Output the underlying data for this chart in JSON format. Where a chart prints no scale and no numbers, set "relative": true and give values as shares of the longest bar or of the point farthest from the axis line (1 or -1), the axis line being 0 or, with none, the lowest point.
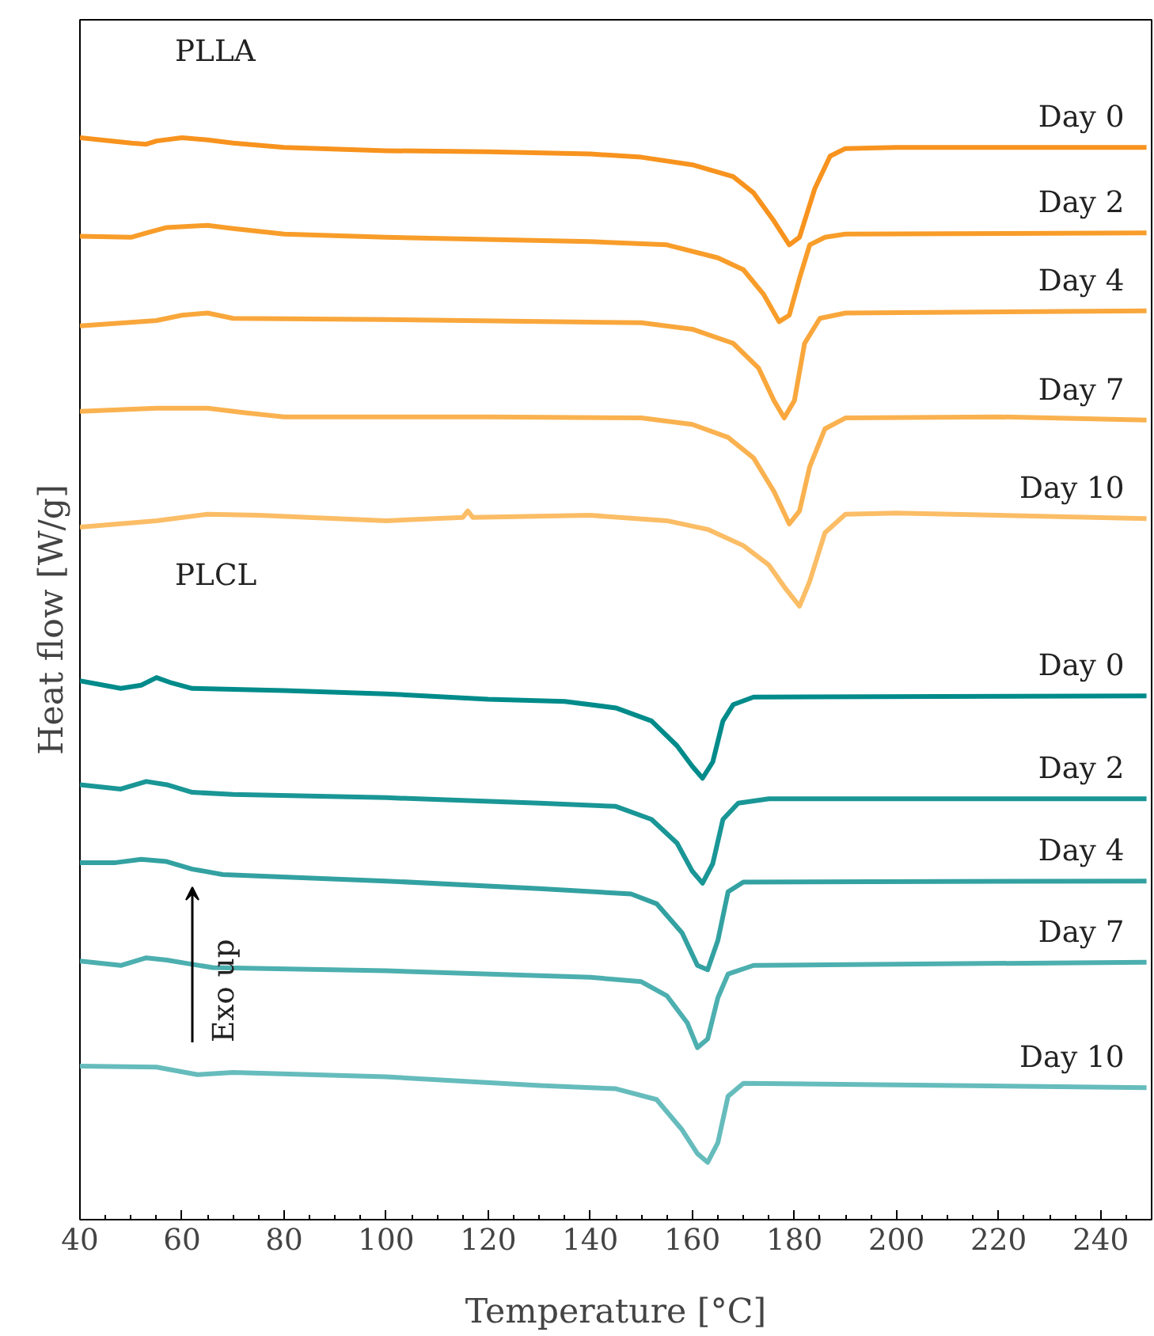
{
  "chart_data": {
    "type": "line",
    "relative": true,
    "xlabel": "Temperature [°C]",
    "ylabel": "Heat flow [W/g]",
    "xlim": [
      40,
      250
    ],
    "xticks": [
      40,
      60,
      80,
      100,
      120,
      140,
      160,
      180,
      200,
      220,
      240
    ],
    "tick_labels": "x",
    "grid": false,
    "marker": "none",
    "line_style": "solid",
    "annotations": [
      "PLLA",
      "PLCL",
      "Exo up"
    ],
    "series": [
      {
        "name": "Day 0",
        "color": "#f7931e",
        "x": [
          40,
          50,
          53,
          55,
          60,
          65,
          70,
          80,
          100,
          120,
          140,
          150,
          160,
          168,
          172,
          176,
          179,
          181,
          184,
          187,
          190,
          200,
          220,
          249
        ],
        "values": [
          1.0,
          0.995,
          0.994,
          0.997,
          1.0,
          0.998,
          0.995,
          0.991,
          0.988,
          0.987,
          0.985,
          0.982,
          0.975,
          0.964,
          0.949,
          0.923,
          0.901,
          0.908,
          0.953,
          0.983,
          0.99,
          0.991,
          0.991,
          0.991
        ]
      },
      {
        "name": "Day 2",
        "color": "#f89d2a",
        "x": [
          40,
          50,
          53,
          57,
          65,
          70,
          80,
          100,
          140,
          155,
          165,
          170,
          174,
          177,
          179,
          181,
          183,
          186,
          190,
          249
        ],
        "values": [
          0.909,
          0.908,
          0.912,
          0.917,
          0.919,
          0.916,
          0.911,
          0.908,
          0.904,
          0.901,
          0.889,
          0.878,
          0.855,
          0.83,
          0.836,
          0.87,
          0.901,
          0.908,
          0.911,
          0.912
        ]
      },
      {
        "name": "Day 4",
        "color": "#f9a73c",
        "x": [
          40,
          55,
          60,
          65,
          70,
          100,
          150,
          160,
          168,
          173,
          176,
          178,
          180,
          182,
          185,
          190,
          249
        ],
        "values": [
          0.826,
          0.831,
          0.836,
          0.838,
          0.833,
          0.832,
          0.829,
          0.823,
          0.81,
          0.787,
          0.757,
          0.741,
          0.757,
          0.81,
          0.833,
          0.838,
          0.84
        ]
      },
      {
        "name": "Day 7",
        "color": "#fab250",
        "x": [
          40,
          55,
          65,
          72,
          80,
          120,
          150,
          160,
          167,
          172,
          176,
          179,
          181,
          183,
          186,
          190,
          220,
          249
        ],
        "values": [
          0.747,
          0.75,
          0.75,
          0.746,
          0.742,
          0.742,
          0.741,
          0.735,
          0.723,
          0.704,
          0.673,
          0.643,
          0.655,
          0.696,
          0.731,
          0.741,
          0.742,
          0.739
        ]
      },
      {
        "name": "Day 10",
        "color": "#fbbd66",
        "x": [
          40,
          55,
          65,
          75,
          100,
          115,
          116,
          117,
          140,
          155,
          163,
          170,
          175,
          178,
          181,
          183,
          186,
          190,
          200,
          249
        ],
        "values": [
          0.64,
          0.646,
          0.652,
          0.651,
          0.646,
          0.649,
          0.655,
          0.649,
          0.651,
          0.646,
          0.638,
          0.623,
          0.605,
          0.585,
          0.567,
          0.59,
          0.635,
          0.652,
          0.653,
          0.648
        ]
      },
      {
        "name": "Day 0",
        "color": "#008b8b",
        "x": [
          40,
          48,
          52,
          55,
          58,
          62,
          80,
          100,
          120,
          135,
          145,
          152,
          157,
          160,
          162,
          164,
          166,
          168,
          172,
          249
        ],
        "values": [
          0.498,
          0.491,
          0.494,
          0.501,
          0.496,
          0.491,
          0.489,
          0.486,
          0.481,
          0.479,
          0.473,
          0.461,
          0.438,
          0.419,
          0.408,
          0.423,
          0.461,
          0.476,
          0.483,
          0.484
        ]
      },
      {
        "name": "Day 2",
        "color": "#1a9696",
        "x": [
          40,
          48,
          53,
          57,
          62,
          70,
          100,
          130,
          145,
          152,
          157,
          160,
          162,
          164,
          166,
          169,
          175,
          249
        ],
        "values": [
          0.402,
          0.398,
          0.405,
          0.402,
          0.395,
          0.393,
          0.39,
          0.385,
          0.382,
          0.37,
          0.348,
          0.322,
          0.311,
          0.329,
          0.37,
          0.385,
          0.389,
          0.389
        ]
      },
      {
        "name": "Day 4",
        "color": "#33a1a1",
        "x": [
          40,
          47,
          52,
          57,
          62,
          68,
          100,
          130,
          148,
          153,
          158,
          161,
          163,
          165,
          167,
          170,
          249
        ],
        "values": [
          0.33,
          0.33,
          0.333,
          0.331,
          0.324,
          0.319,
          0.313,
          0.306,
          0.301,
          0.292,
          0.265,
          0.235,
          0.231,
          0.258,
          0.303,
          0.312,
          0.313
        ]
      },
      {
        "name": "Day 7",
        "color": "#4dafaf",
        "x": [
          40,
          48,
          53,
          57,
          62,
          66,
          100,
          140,
          150,
          155,
          159,
          161,
          163,
          165,
          167,
          172,
          249
        ],
        "values": [
          0.239,
          0.235,
          0.242,
          0.24,
          0.236,
          0.233,
          0.23,
          0.224,
          0.22,
          0.207,
          0.182,
          0.159,
          0.167,
          0.205,
          0.227,
          0.235,
          0.238
        ]
      },
      {
        "name": "Day 10",
        "color": "#66bcbc",
        "x": [
          40,
          55,
          63,
          70,
          100,
          130,
          145,
          153,
          158,
          161,
          163,
          165,
          167,
          170,
          249
        ],
        "values": [
          0.142,
          0.141,
          0.134,
          0.136,
          0.132,
          0.124,
          0.121,
          0.111,
          0.083,
          0.061,
          0.053,
          0.071,
          0.114,
          0.126,
          0.122
        ]
      }
    ]
  }
}
